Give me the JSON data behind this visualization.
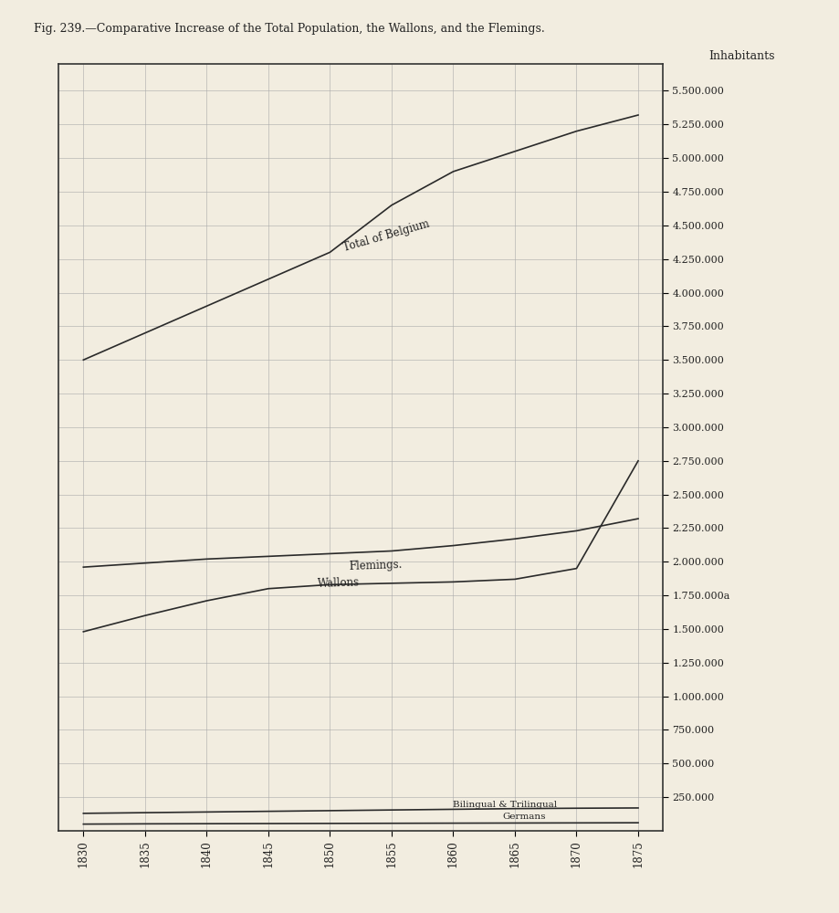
{
  "title_prefix": "Fig. 239.",
  "title_main": "—Comparative Increase of the Total Population, the Wallons, and the Flemings.",
  "bg_color": "#f2ede0",
  "plot_bg_color": "#f2ede0",
  "years": [
    1830,
    1835,
    1840,
    1845,
    1850,
    1855,
    1860,
    1865,
    1870,
    1875
  ],
  "total_belgium": [
    3500000,
    3700000,
    3900000,
    4100000,
    4300000,
    4650000,
    4900000,
    5050000,
    5200000,
    5320000
  ],
  "flemings": [
    1480000,
    1600000,
    1710000,
    1800000,
    1830000,
    1840000,
    1850000,
    1870000,
    1950000,
    2750000
  ],
  "wallons": [
    1960000,
    1990000,
    2020000,
    2040000,
    2060000,
    2080000,
    2120000,
    2170000,
    2230000,
    2320000
  ],
  "bilingual": [
    130000,
    135000,
    140000,
    145000,
    150000,
    155000,
    160000,
    165000,
    168000,
    170000
  ],
  "germans": [
    50000,
    52000,
    53000,
    54000,
    55000,
    56000,
    57000,
    58000,
    59000,
    60000
  ],
  "line_color": "#2a2a2a",
  "grid_color": "#aaaaaa",
  "ylabel": "Inhabitants",
  "yticks": [
    250000,
    500000,
    750000,
    1000000,
    1250000,
    1500000,
    1750000,
    2000000,
    2250000,
    2500000,
    2750000,
    3000000,
    3250000,
    3500000,
    3750000,
    4000000,
    4250000,
    4500000,
    4750000,
    5000000,
    5250000,
    5500000
  ],
  "ytick_labels": [
    "250.000",
    "500.000",
    "750.000",
    "1.000.000",
    "1.250.000",
    "1.500.000",
    "1.750.000a",
    "2.000.000",
    "2.250.000",
    "2.500.000",
    "2.750.000",
    "3.000.000",
    "3.250.000",
    "3.500.000",
    "3.750.000",
    "4.000.000",
    "4.250.000",
    "4.500.000",
    "4.750.000",
    "5.000.000",
    "5.250.000",
    "5.500.000"
  ],
  "ylim": [
    0,
    5700000
  ],
  "xlim": [
    1828,
    1877
  ],
  "border_color": "#333333"
}
